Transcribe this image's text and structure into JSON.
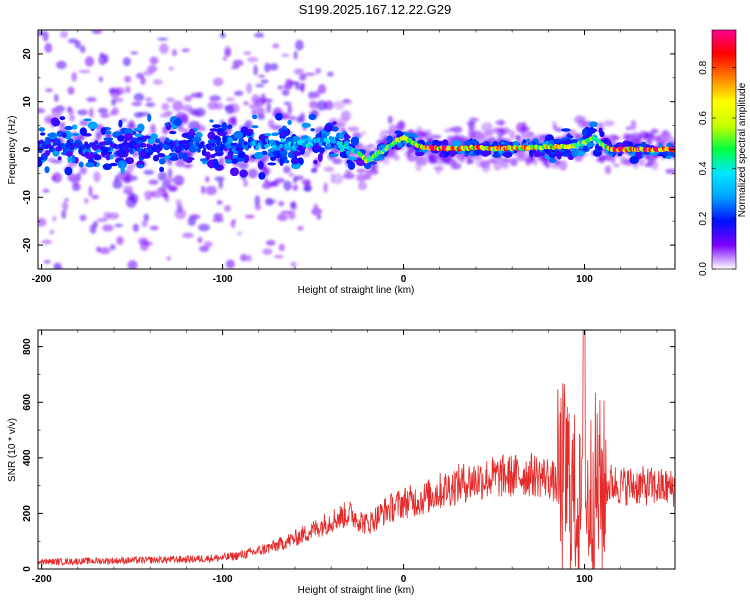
{
  "title": "S199.2025.167.12.22.G29",
  "colors": {
    "snr_line": "#e52a2a",
    "axis": "#000000",
    "background": "#ffffff"
  },
  "colorbar": {
    "label": "Normalized spectral amplitude",
    "range": [
      0,
      0.95
    ],
    "ticks": [
      0.0,
      0.2,
      0.4,
      0.6,
      0.8
    ],
    "tick_labels": [
      "0.0",
      "0.2",
      "0.4",
      "0.6",
      "0.8"
    ],
    "stops": [
      "#ffffff",
      "#7a00ff",
      "#0010ff",
      "#00a0ff",
      "#00e8ff",
      "#00ff40",
      "#c8ff00",
      "#ffff00",
      "#ff8000",
      "#ff0000",
      "#ff0090"
    ]
  },
  "chart_data": [
    {
      "type": "heatmap",
      "xlabel": "Height of straight line (km)",
      "ylabel": "Frequency (Hz)",
      "xlim": [
        -202,
        150
      ],
      "ylim": [
        -25,
        25
      ],
      "x_ticks": [
        -200,
        -100,
        0,
        100
      ],
      "x_tick_labels": [
        "-200",
        "-100",
        "0",
        "100"
      ],
      "y_ticks": [
        -20,
        -10,
        0,
        10,
        20
      ],
      "y_tick_labels": [
        "-20",
        "-10",
        "0",
        "10",
        "20"
      ],
      "colorbar_label": "Normalized spectral amplitude",
      "ridge": {
        "x": [
          -202,
          -150,
          -100,
          -60,
          -40,
          -32,
          -25,
          -20,
          -15,
          -10,
          -5,
          0,
          5,
          10,
          20,
          40,
          60,
          80,
          95,
          100,
          105,
          110,
          115,
          150
        ],
        "freq_hz": [
          0.8,
          0.8,
          0.8,
          1.2,
          2.0,
          0.5,
          -0.5,
          -2.5,
          -1.0,
          0.0,
          1.5,
          2.5,
          1.5,
          0.5,
          0.2,
          0.3,
          0.3,
          0.5,
          0.8,
          1.5,
          2.5,
          1.0,
          0.0,
          0.0
        ],
        "amplitude": [
          0.2,
          0.2,
          0.25,
          0.35,
          0.35,
          0.4,
          0.5,
          0.65,
          0.55,
          0.55,
          0.6,
          0.7,
          0.75,
          0.85,
          0.85,
          0.8,
          0.8,
          0.75,
          0.6,
          0.6,
          0.55,
          0.55,
          0.9,
          0.9
        ]
      }
    },
    {
      "type": "line",
      "xlabel": "Height of straight line (km)",
      "ylabel": "SNR (10 * v/v)",
      "xlim": [
        -202,
        150
      ],
      "ylim": [
        0,
        860
      ],
      "x_ticks": [
        -200,
        -100,
        0,
        100
      ],
      "x_tick_labels": [
        "-200",
        "-100",
        "0",
        "100"
      ],
      "y_ticks": [
        0,
        200,
        400,
        600,
        800
      ],
      "y_tick_labels": [
        "0",
        "200",
        "400",
        "600",
        "800"
      ],
      "series": [
        {
          "x": [
            -202,
            -180,
            -160,
            -140,
            -120,
            -100,
            -90,
            -80,
            -70,
            -60,
            -50,
            -40,
            -30,
            -20,
            -10,
            0,
            10,
            20,
            30,
            40,
            50,
            60,
            70,
            80,
            85,
            90,
            95,
            100,
            105,
            110,
            115,
            120,
            130,
            140,
            150
          ],
          "values": [
            25,
            28,
            30,
            32,
            35,
            40,
            50,
            65,
            85,
            110,
            140,
            175,
            200,
            160,
            210,
            240,
            250,
            280,
            305,
            320,
            330,
            335,
            340,
            330,
            300,
            330,
            250,
            200,
            300,
            280,
            310,
            300,
            300,
            295,
            290
          ]
        }
      ],
      "annotations": {
        "spike_peak": {
          "x": 100,
          "y": 850
        }
      }
    }
  ]
}
